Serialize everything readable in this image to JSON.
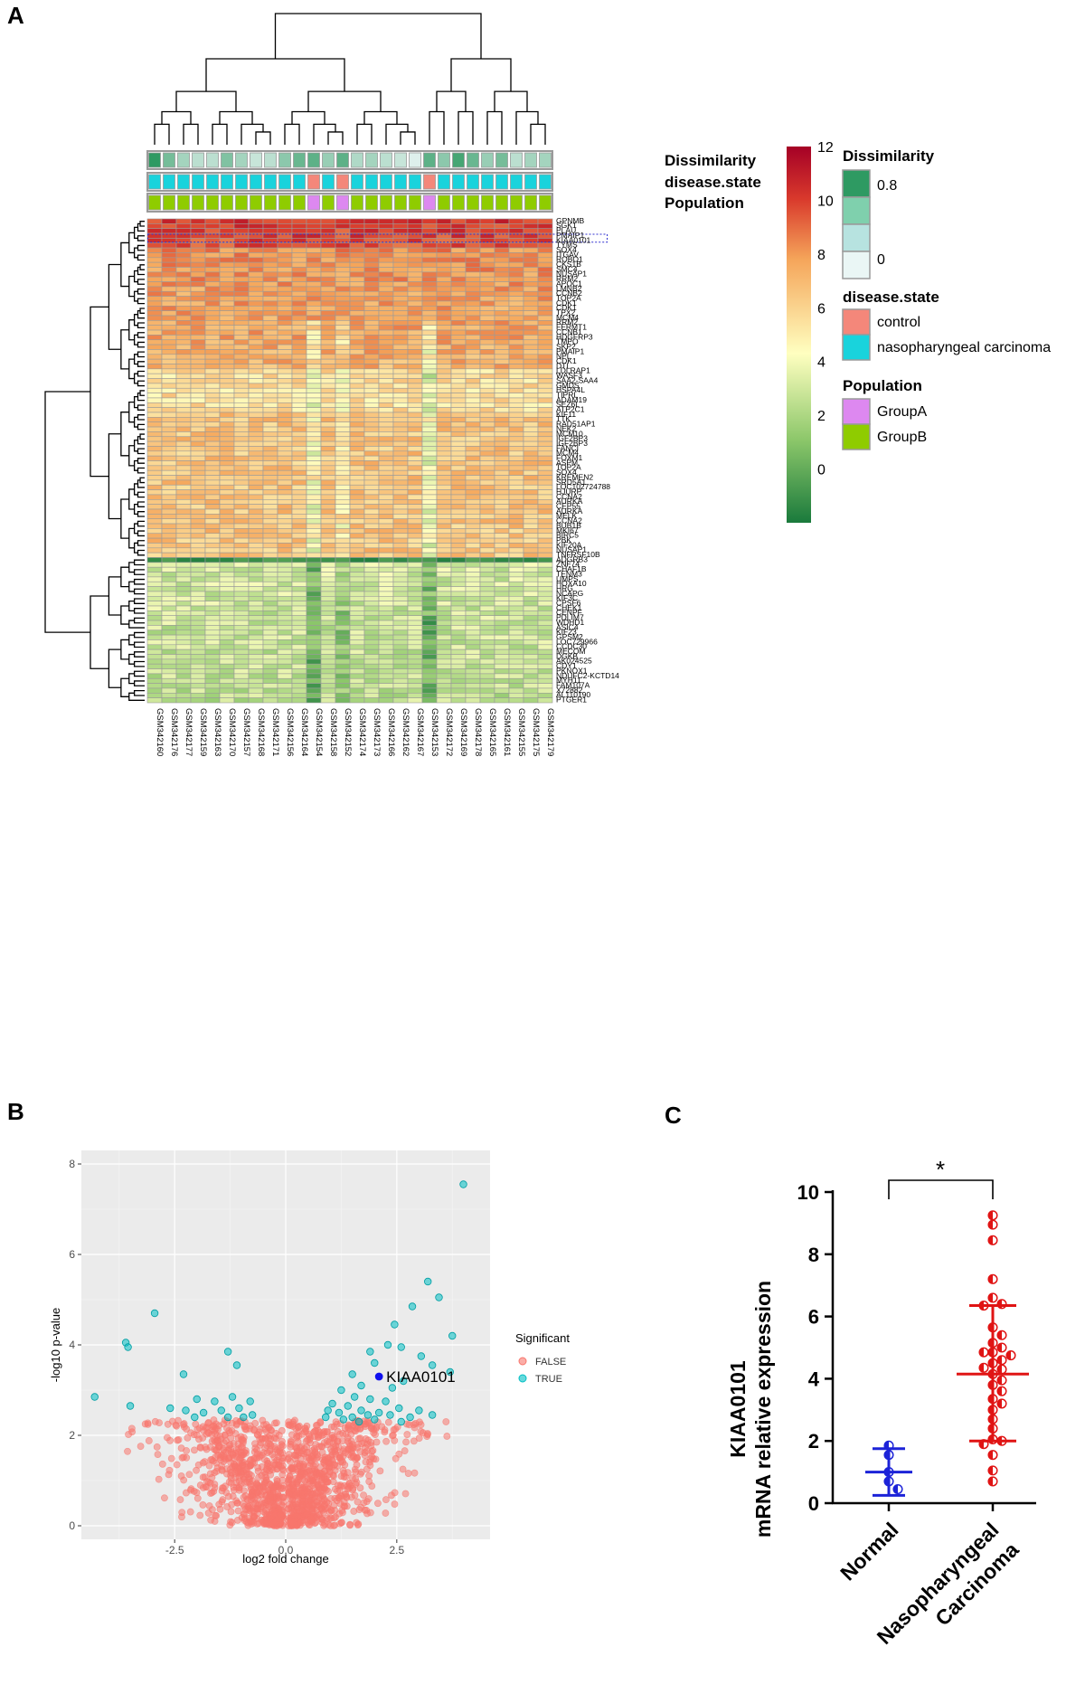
{
  "panel_labels": {
    "a": "A",
    "b": "B",
    "c": "C"
  },
  "colors": {
    "heat_low": "#1a7a3c",
    "heat_mid": "#ffffc0",
    "heat_high": "#a50026",
    "dissimilarity_high": "#2e9a62",
    "dissimilarity_low": "#eaf6f5",
    "control": "#f4877a",
    "nasopharyngeal_carcinoma": "#19d3dc",
    "groupA": "#dd88f0",
    "groupB": "#8fcc00",
    "volcano_false": "#f8766d",
    "volcano_true": "#00bfc4",
    "volcano_highlight": "#1010ee",
    "scatter_normal": "#1c23d8",
    "scatter_carcinoma": "#e01414"
  },
  "chart_data": [
    {
      "type": "heatmap",
      "panel": "A",
      "annotation_rows": [
        "Dissimilarity",
        "disease.state",
        "Population"
      ],
      "samples": [
        "GSM342160",
        "GSM342176",
        "GSM342177",
        "GSM342159",
        "GSM342163",
        "GSM342170",
        "GSM342157",
        "GSM342168",
        "GSM342171",
        "GSM342156",
        "GSM342164",
        "GSM342154",
        "GSM342158",
        "GSM342152",
        "GSM342174",
        "GSM342173",
        "GSM342166",
        "GSM342162",
        "GSM342167",
        "GSM342153",
        "GSM342172",
        "GSM342169",
        "GSM342178",
        "GSM342165",
        "GSM342161",
        "GSM342155",
        "GSM342175",
        "GSM342179"
      ],
      "genes": [
        "GPNMB",
        "SGK1",
        "PLAU",
        "PMAIP1",
        "KIAA0101",
        "TYMS",
        "SOX4",
        "ITGAV",
        "ROBO1",
        "CKS1B",
        "SMC4",
        "NUSAP1",
        "RRM2",
        "APOC1",
        "LMNB2",
        "CCNB2",
        "TOP2A",
        "CDK1",
        "CDK1",
        "TPX2",
        "MCM4",
        "RRM2",
        "FERMT1",
        "CCNB1",
        "HDGFRP3",
        "TMPO",
        "SKP2",
        "PMAIP1",
        "NPL",
        "CDK1",
        "DTL",
        "LDLRAP1",
        "WASF3",
        "SAA2-SAA4",
        "GMDS",
        "HSPA4L",
        "TIPRL",
        "ADAM19",
        "SEZ6L",
        "ATP2C1",
        "KIF11",
        "TTK",
        "RAD51AP1",
        "NEK2",
        "MCM10",
        "IGF2BP3",
        "IGF2BP3",
        "FANCI",
        "MCM4",
        "FOXM1",
        "ASPM",
        "TOP2A",
        "SOX4",
        "KREMEN2",
        "SRD5A1",
        "LOC102724788",
        "HJURP",
        "CCNA2",
        "AURKA",
        "CEP55",
        "AURKA",
        "MELK",
        "CCNA2",
        "BUB1B",
        "MKI67",
        "BIRC5",
        "PBK",
        "KIF20A",
        "NUSAP1",
        "TNFRSF10B",
        "ADGRB3",
        "ZNF74",
        "CHAF1B",
        "TENM3",
        "UMPS",
        "HOXA10",
        "HRG",
        "NCAPG",
        "KIF3C",
        "CPSF6",
        "CHEK1",
        "CENPF",
        "PDLIM7",
        "WDHD1",
        "ASIC4",
        "KIF23",
        "GPSM2",
        "LOC729966",
        "CCDC30",
        "MECOM",
        "DGKB",
        "AK024525",
        "CDY1",
        "PKNOX1",
        "NDUFC2-KCTD14",
        "MYH11",
        "FAM107A",
        "X72882",
        "AL110190",
        "PTGER1"
      ],
      "disease_state": [
        "nasopharyngeal carcinoma",
        "nasopharyngeal carcinoma",
        "nasopharyngeal carcinoma",
        "nasopharyngeal carcinoma",
        "nasopharyngeal carcinoma",
        "nasopharyngeal carcinoma",
        "nasopharyngeal carcinoma",
        "nasopharyngeal carcinoma",
        "nasopharyngeal carcinoma",
        "nasopharyngeal carcinoma",
        "nasopharyngeal carcinoma",
        "control",
        "nasopharyngeal carcinoma",
        "control",
        "nasopharyngeal carcinoma",
        "nasopharyngeal carcinoma",
        "nasopharyngeal carcinoma",
        "nasopharyngeal carcinoma",
        "nasopharyngeal carcinoma",
        "control",
        "nasopharyngeal carcinoma",
        "nasopharyngeal carcinoma",
        "nasopharyngeal carcinoma",
        "nasopharyngeal carcinoma",
        "nasopharyngeal carcinoma",
        "nasopharyngeal carcinoma",
        "nasopharyngeal carcinoma",
        "nasopharyngeal carcinoma"
      ],
      "population": [
        "GroupB",
        "GroupB",
        "GroupB",
        "GroupB",
        "GroupB",
        "GroupB",
        "GroupB",
        "GroupB",
        "GroupB",
        "GroupB",
        "GroupB",
        "GroupA",
        "GroupB",
        "GroupA",
        "GroupB",
        "GroupB",
        "GroupB",
        "GroupB",
        "GroupB",
        "GroupA",
        "GroupB",
        "GroupB",
        "GroupB",
        "GroupB",
        "GroupB",
        "GroupB",
        "GroupB",
        "GroupB"
      ],
      "dissimilarity": [
        0.8,
        0.5,
        0.3,
        0.2,
        0.2,
        0.45,
        0.3,
        0.15,
        0.2,
        0.4,
        0.55,
        0.6,
        0.35,
        0.6,
        0.25,
        0.3,
        0.2,
        0.15,
        0.05,
        0.6,
        0.4,
        0.7,
        0.55,
        0.35,
        0.5,
        0.2,
        0.3,
        0.3
      ],
      "color_scale": {
        "ticks": [
          "12",
          "10",
          "8",
          "6",
          "4",
          "2",
          "0"
        ],
        "range": [
          -2,
          12
        ]
      },
      "legend": {
        "dissimilarity_title": "Dissimilarity",
        "dissimilarity_ticks": [
          "0.8",
          "0"
        ],
        "disease_title": "disease.state",
        "disease_items": [
          "control",
          "nasopharyngeal carcinoma"
        ],
        "population_title": "Population",
        "population_items": [
          "GroupA",
          "GroupB"
        ]
      }
    },
    {
      "type": "scatter",
      "panel": "B",
      "xlabel": "log2 fold change",
      "ylabel": "-log10 p-value",
      "xticks": [
        "-2.5",
        "0.0",
        "2.5"
      ],
      "yticks": [
        "0",
        "2",
        "4",
        "6",
        "8"
      ],
      "xlim": [
        -4.6,
        4.6
      ],
      "ylim": [
        -0.3,
        8.3
      ],
      "legend_title": "Significant",
      "legend_items": [
        "FALSE",
        "TRUE"
      ],
      "highlight": {
        "label": "KIAA0101",
        "x": 2.1,
        "y": 3.3
      },
      "series_true": [
        {
          "x": 4.0,
          "y": 7.55
        },
        {
          "x": 3.2,
          "y": 5.4
        },
        {
          "x": 3.45,
          "y": 5.05
        },
        {
          "x": 2.85,
          "y": 4.85
        },
        {
          "x": 2.45,
          "y": 4.45
        },
        {
          "x": 3.75,
          "y": 4.2
        },
        {
          "x": 2.3,
          "y": 4.0
        },
        {
          "x": 2.6,
          "y": 3.95
        },
        {
          "x": 3.05,
          "y": 3.75
        },
        {
          "x": 1.9,
          "y": 3.85
        },
        {
          "x": 2.0,
          "y": 3.6
        },
        {
          "x": 3.3,
          "y": 3.55
        },
        {
          "x": 3.7,
          "y": 3.4
        },
        {
          "x": 1.5,
          "y": 3.35
        },
        {
          "x": 2.65,
          "y": 3.2
        },
        {
          "x": 1.7,
          "y": 3.1
        },
        {
          "x": 2.4,
          "y": 3.05
        },
        {
          "x": 1.25,
          "y": 3.0
        },
        {
          "x": 1.55,
          "y": 2.85
        },
        {
          "x": 1.9,
          "y": 2.8
        },
        {
          "x": 2.25,
          "y": 2.75
        },
        {
          "x": 1.05,
          "y": 2.7
        },
        {
          "x": 1.4,
          "y": 2.65
        },
        {
          "x": 1.7,
          "y": 2.55
        },
        {
          "x": 2.55,
          "y": 2.6
        },
        {
          "x": 0.95,
          "y": 2.55
        },
        {
          "x": 1.2,
          "y": 2.5
        },
        {
          "x": 1.85,
          "y": 2.45
        },
        {
          "x": 2.1,
          "y": 2.5
        },
        {
          "x": 2.35,
          "y": 2.45
        },
        {
          "x": 3.0,
          "y": 2.55
        },
        {
          "x": 3.3,
          "y": 2.45
        },
        {
          "x": 1.5,
          "y": 2.4
        },
        {
          "x": 0.9,
          "y": 2.4
        },
        {
          "x": 2.8,
          "y": 2.4
        },
        {
          "x": 1.3,
          "y": 2.35
        },
        {
          "x": 2.0,
          "y": 2.35
        },
        {
          "x": 1.65,
          "y": 2.3
        },
        {
          "x": 2.6,
          "y": 2.3
        },
        {
          "x": -2.95,
          "y": 4.7
        },
        {
          "x": -3.6,
          "y": 4.05
        },
        {
          "x": -3.55,
          "y": 3.95
        },
        {
          "x": -1.3,
          "y": 3.85
        },
        {
          "x": -1.1,
          "y": 3.55
        },
        {
          "x": -2.3,
          "y": 3.35
        },
        {
          "x": -4.3,
          "y": 2.85
        },
        {
          "x": -3.5,
          "y": 2.65
        },
        {
          "x": -2.0,
          "y": 2.8
        },
        {
          "x": -1.6,
          "y": 2.75
        },
        {
          "x": -1.2,
          "y": 2.85
        },
        {
          "x": -0.8,
          "y": 2.75
        },
        {
          "x": -2.6,
          "y": 2.6
        },
        {
          "x": -2.25,
          "y": 2.55
        },
        {
          "x": -1.85,
          "y": 2.5
        },
        {
          "x": -1.45,
          "y": 2.55
        },
        {
          "x": -1.05,
          "y": 2.6
        },
        {
          "x": -0.75,
          "y": 2.45
        },
        {
          "x": -2.05,
          "y": 2.4
        },
        {
          "x": -1.3,
          "y": 2.4
        },
        {
          "x": -0.95,
          "y": 2.4
        }
      ]
    },
    {
      "type": "scatter",
      "panel": "C",
      "categories": [
        "Normal",
        "Nasopharyngeal Carcinoma"
      ],
      "category_label_lines": [
        "Nasopharyngeal",
        "Carcinoma"
      ],
      "ylabel_line1": "KIAA0101",
      "ylabel_line2": "mRNA relative expression",
      "yticks": [
        "0",
        "2",
        "4",
        "6",
        "8",
        "10"
      ],
      "ylim": [
        0,
        10
      ],
      "significance": "*",
      "series": [
        {
          "name": "Normal",
          "mean": 1.0,
          "sd_low": 0.25,
          "sd_high": 1.75,
          "values": [
            1.85,
            1.55,
            1.0,
            0.7,
            0.45
          ]
        },
        {
          "name": "Nasopharyngeal Carcinoma",
          "mean": 4.15,
          "sd_low": 2.0,
          "sd_high": 6.35,
          "values": [
            9.25,
            8.95,
            8.45,
            7.2,
            6.6,
            6.4,
            6.35,
            5.65,
            5.4,
            5.15,
            5.0,
            4.85,
            4.85,
            4.75,
            4.6,
            4.5,
            4.35,
            4.3,
            4.15,
            3.95,
            3.8,
            3.6,
            3.35,
            3.2,
            3.0,
            2.7,
            2.4,
            2.05,
            2.0,
            1.9,
            1.55,
            1.05,
            0.7
          ]
        }
      ]
    }
  ]
}
